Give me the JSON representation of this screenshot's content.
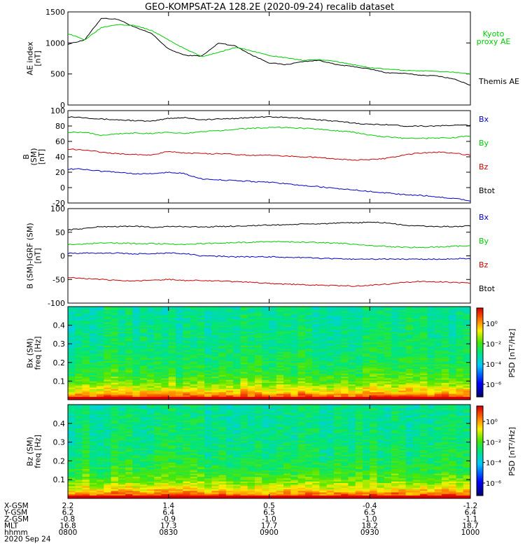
{
  "title": "GEO-KOMPSAT-2A 128.2E (2020-09-24) recalib dataset",
  "panels": [
    {
      "ylabel_lines": [
        "AE index",
        "[nT]"
      ],
      "ylim": [
        0,
        1500
      ],
      "yticks": [
        0,
        500,
        1000,
        1500
      ],
      "legend": [
        {
          "text": "Kyoto",
          "color": "#00cc00"
        },
        {
          "text": "proxy AE",
          "color": "#00cc00"
        },
        {
          "text": "Themis AE",
          "color": "#000000"
        }
      ]
    },
    {
      "ylabel_lines": [
        "B",
        "(SM)",
        "[nT]"
      ],
      "ylabel_sub": "r",
      "ylim": [
        -20,
        100
      ],
      "yticks": [
        -20,
        0,
        20,
        40,
        60,
        80,
        100
      ],
      "legend": [
        {
          "text": "Bx",
          "color": "#0000cc"
        },
        {
          "text": "By",
          "color": "#00cc00"
        },
        {
          "text": "Bz",
          "color": "#cc0000"
        },
        {
          "text": "Btot",
          "color": "#000000"
        }
      ]
    },
    {
      "ylabel_lines": [
        "B (SM)-IGRF (SM)",
        "[nT]"
      ],
      "ylim": [
        -100,
        100
      ],
      "yticks": [
        -100,
        -50,
        0,
        50,
        100
      ],
      "legend": [
        {
          "text": "Bx",
          "color": "#0000cc"
        },
        {
          "text": "By",
          "color": "#00cc00"
        },
        {
          "text": "Bz",
          "color": "#cc0000"
        },
        {
          "text": "Btot",
          "color": "#000000"
        }
      ]
    },
    {
      "ylabel_lines": [
        "Bx (SM)",
        "freq [Hz]"
      ],
      "ylim": [
        0,
        0.5
      ],
      "yticks": [
        0.1,
        0.2,
        0.3,
        0.4
      ]
    },
    {
      "ylabel_lines": [
        "Bz (SM)",
        "freq [Hz]"
      ],
      "ylim": [
        0,
        0.5
      ],
      "yticks": [
        0.1,
        0.2,
        0.3,
        0.4
      ]
    }
  ],
  "colorbar": {
    "label": "PSD [nT²/Hz]",
    "ticks": [
      "10⁰",
      "10⁻²",
      "10⁻⁴",
      "10⁻⁶"
    ]
  },
  "xaxis": {
    "rows": [
      {
        "label": "X-GSM",
        "values": [
          "2.2",
          "1.4",
          "0.5",
          "-0.4",
          "-1.2"
        ]
      },
      {
        "label": "Y-GSM",
        "values": [
          "6.2",
          "6.4",
          "6.5",
          "6.5",
          "6.4"
        ]
      },
      {
        "label": "Z-GSM",
        "values": [
          "-0.8",
          "-0.9",
          "-1.0",
          "-1.0",
          "-1.1"
        ]
      },
      {
        "label": "MLT",
        "values": [
          "16.8",
          "17.3",
          "17.7",
          "18.2",
          "18.7"
        ]
      },
      {
        "label": "hhmm",
        "values": [
          "0800",
          "0830",
          "0900",
          "0930",
          "1000"
        ]
      }
    ],
    "date": "2020 Sep 24"
  },
  "chart_data": [
    {
      "type": "line",
      "title": "GEO-KOMPSAT-2A 128.2E (2020-09-24) recalib dataset",
      "ylabel": "AE index [nT]",
      "x": [
        "08:00",
        "08:05",
        "08:10",
        "08:15",
        "08:20",
        "08:25",
        "08:30",
        "08:35",
        "08:40",
        "08:45",
        "08:50",
        "08:55",
        "09:00",
        "09:05",
        "09:10",
        "09:15",
        "09:20",
        "09:25",
        "09:30",
        "09:35",
        "09:40",
        "09:45",
        "09:50",
        "09:55",
        "10:00"
      ],
      "ylim": [
        0,
        1500
      ],
      "series": [
        {
          "name": "Themis AE",
          "color": "#000000",
          "values": [
            980,
            1050,
            1400,
            1380,
            1250,
            1150,
            900,
            800,
            790,
            1000,
            950,
            800,
            680,
            650,
            700,
            720,
            650,
            620,
            580,
            520,
            510,
            480,
            470,
            420,
            320
          ]
        },
        {
          "name": "Kyoto proxy AE",
          "color": "#00cc00",
          "values": [
            1150,
            1050,
            1250,
            1300,
            1280,
            1200,
            1050,
            900,
            780,
            850,
            930,
            870,
            800,
            760,
            720,
            730,
            700,
            650,
            600,
            580,
            560,
            550,
            540,
            530,
            500
          ]
        }
      ]
    },
    {
      "type": "line",
      "ylabel": "B (SM) [nT]",
      "x": [
        "08:00",
        "08:05",
        "08:10",
        "08:15",
        "08:20",
        "08:25",
        "08:30",
        "08:35",
        "08:40",
        "08:45",
        "08:50",
        "08:55",
        "09:00",
        "09:05",
        "09:10",
        "09:15",
        "09:20",
        "09:25",
        "09:30",
        "09:35",
        "09:40",
        "09:45",
        "09:50",
        "09:55",
        "10:00"
      ],
      "ylim": [
        -20,
        100
      ],
      "series": [
        {
          "name": "Btot",
          "color": "#000000",
          "values": [
            92,
            91,
            89,
            88,
            87,
            86,
            90,
            91,
            88,
            89,
            90,
            91,
            92,
            91,
            90,
            88,
            86,
            84,
            82,
            82,
            80,
            80,
            80,
            81,
            81
          ]
        },
        {
          "name": "By",
          "color": "#00cc00",
          "values": [
            72,
            72,
            68,
            70,
            71,
            70,
            72,
            70,
            73,
            74,
            76,
            77,
            78,
            78,
            77,
            76,
            74,
            72,
            68,
            66,
            64,
            64,
            64,
            65,
            67
          ]
        },
        {
          "name": "Bz",
          "color": "#cc0000",
          "values": [
            50,
            49,
            46,
            44,
            43,
            42,
            47,
            45,
            44,
            44,
            43,
            42,
            42,
            41,
            40,
            39,
            37,
            36,
            36,
            38,
            42,
            45,
            46,
            45,
            42
          ]
        },
        {
          "name": "Bx",
          "color": "#0000cc",
          "values": [
            24,
            24,
            21,
            20,
            18,
            18,
            20,
            18,
            11,
            10,
            9,
            8,
            7,
            5,
            3,
            1,
            -1,
            -3,
            -5,
            -7,
            -9,
            -10,
            -12,
            -14,
            -17
          ]
        }
      ]
    },
    {
      "type": "line",
      "ylabel": "B (SM)-IGRF (SM) [nT]",
      "x": [
        "08:00",
        "08:05",
        "08:10",
        "08:15",
        "08:20",
        "08:25",
        "08:30",
        "08:35",
        "08:40",
        "08:45",
        "08:50",
        "08:55",
        "09:00",
        "09:05",
        "09:10",
        "09:15",
        "09:20",
        "09:25",
        "09:30",
        "09:35",
        "09:40",
        "09:45",
        "09:50",
        "09:55",
        "10:00"
      ],
      "ylim": [
        -100,
        100
      ],
      "series": [
        {
          "name": "Btot",
          "color": "#000000",
          "values": [
            55,
            58,
            62,
            62,
            63,
            60,
            62,
            62,
            61,
            62,
            63,
            64,
            65,
            66,
            67,
            68,
            69,
            70,
            71,
            70,
            65,
            63,
            62,
            62,
            63
          ]
        },
        {
          "name": "By",
          "color": "#00cc00",
          "values": [
            24,
            25,
            28,
            27,
            26,
            26,
            25,
            24,
            26,
            27,
            28,
            29,
            30,
            30,
            29,
            28,
            27,
            25,
            22,
            20,
            18,
            18,
            19,
            20,
            22
          ]
        },
        {
          "name": "Bx",
          "color": "#0000cc",
          "values": [
            5,
            6,
            6,
            6,
            4,
            5,
            6,
            5,
            0,
            -1,
            -2,
            -2,
            -2,
            -3,
            -4,
            -5,
            -6,
            -7,
            -7,
            -7,
            -7,
            -7,
            -7,
            -6,
            -6
          ]
        },
        {
          "name": "Bz",
          "color": "#cc0000",
          "values": [
            -45,
            -48,
            -50,
            -52,
            -53,
            -52,
            -50,
            -52,
            -52,
            -53,
            -55,
            -56,
            -58,
            -60,
            -61,
            -62,
            -63,
            -64,
            -62,
            -60,
            -56,
            -54,
            -55,
            -56,
            -57
          ]
        }
      ]
    },
    {
      "type": "heatmap",
      "ylabel": "Bx (SM) freq [Hz]",
      "ylim": [
        0,
        0.5
      ],
      "colorbar_label": "PSD [nT²/Hz]"
    },
    {
      "type": "heatmap",
      "ylabel": "Bz (SM) freq [Hz]",
      "ylim": [
        0,
        0.5
      ],
      "colorbar_label": "PSD [nT²/Hz]"
    }
  ]
}
